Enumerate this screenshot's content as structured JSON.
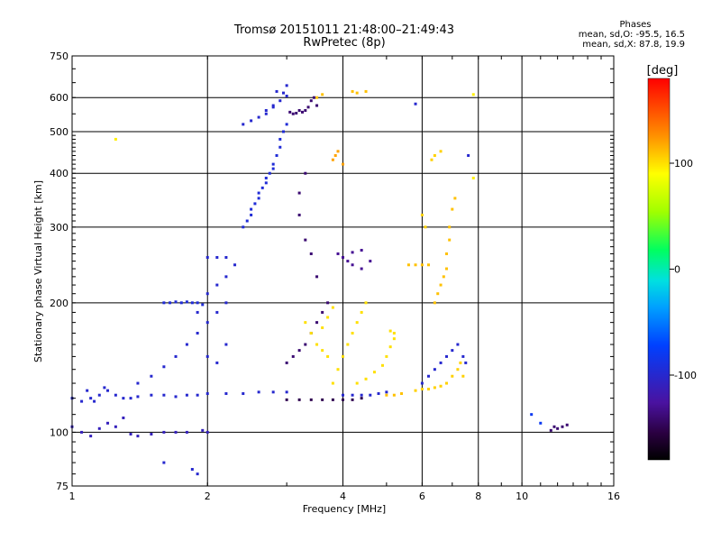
{
  "header": {
    "title": "Tromsø 20151011 21:48:00–21:49:43",
    "subtitle": "RwPretec (8p)"
  },
  "phases_box": {
    "heading": "Phases",
    "line_o": "mean, sd,O: -95.5, 16.5",
    "line_x": "mean, sd,X:  87.8, 19.9"
  },
  "chart_data": {
    "type": "scatter",
    "title": "Tromsø 20151011 21:48:00–21:49:43",
    "subtitle": "RwPretec (8p)",
    "xlabel": "Frequency [MHz]",
    "ylabel": "Stationary phase Virtual Height [km]",
    "x_scale": "log",
    "y_scale": "log",
    "xlim": [
      1,
      16
    ],
    "ylim": [
      75,
      750
    ],
    "x_ticks": [
      1,
      2,
      4,
      6,
      8,
      10,
      16
    ],
    "y_ticks": [
      75,
      100,
      200,
      300,
      400,
      500,
      600,
      750
    ],
    "x_grid": [
      1,
      2,
      4,
      6,
      8,
      10,
      16
    ],
    "y_grid": [
      100,
      200,
      300,
      400,
      500,
      600,
      750
    ],
    "grid": true,
    "colorbar": {
      "label": "[deg]",
      "range": [
        -180,
        180
      ],
      "ticks": [
        -100,
        0,
        100
      ],
      "colormap": "rainbow (black-purple-blue-cyan-green-yellow-orange-red)"
    },
    "series": [
      {
        "phase": -100,
        "points": [
          [
            1.0,
            120
          ],
          [
            1.05,
            118
          ],
          [
            1.08,
            125
          ],
          [
            1.1,
            120
          ],
          [
            1.12,
            118
          ],
          [
            1.15,
            122
          ],
          [
            1.18,
            127
          ],
          [
            1.2,
            125
          ],
          [
            1.25,
            122
          ],
          [
            1.3,
            120
          ],
          [
            1.35,
            120
          ],
          [
            1.4,
            121
          ],
          [
            1.5,
            122
          ],
          [
            1.6,
            122
          ],
          [
            1.7,
            121
          ],
          [
            1.8,
            122
          ],
          [
            1.9,
            122
          ],
          [
            2.0,
            123
          ],
          [
            2.2,
            123
          ],
          [
            2.4,
            123
          ],
          [
            2.6,
            124
          ],
          [
            2.8,
            124
          ],
          [
            3.0,
            124
          ]
        ]
      },
      {
        "phase": -110,
        "points": [
          [
            1.0,
            103
          ],
          [
            1.05,
            100
          ],
          [
            1.1,
            98
          ],
          [
            1.15,
            102
          ],
          [
            1.2,
            105
          ],
          [
            1.25,
            103
          ],
          [
            1.3,
            108
          ],
          [
            1.35,
            99
          ],
          [
            1.4,
            98
          ],
          [
            1.5,
            99
          ],
          [
            1.6,
            100
          ],
          [
            1.7,
            100
          ],
          [
            1.8,
            100
          ],
          [
            1.95,
            101
          ],
          [
            2.0,
            100
          ]
        ]
      },
      {
        "phase": -95,
        "points": [
          [
            1.6,
            200
          ],
          [
            1.65,
            200
          ],
          [
            1.7,
            201
          ],
          [
            1.75,
            200
          ],
          [
            1.8,
            201
          ],
          [
            1.85,
            200
          ],
          [
            1.9,
            200
          ],
          [
            1.95,
            198
          ]
        ]
      },
      {
        "phase": -100,
        "points": [
          [
            1.4,
            130
          ],
          [
            1.5,
            135
          ],
          [
            1.6,
            142
          ],
          [
            1.7,
            150
          ],
          [
            1.8,
            160
          ],
          [
            1.9,
            170
          ],
          [
            2.0,
            180
          ],
          [
            2.1,
            190
          ],
          [
            2.2,
            200
          ],
          [
            2.0,
            150
          ],
          [
            2.1,
            145
          ],
          [
            2.2,
            160
          ],
          [
            1.9,
            190
          ],
          [
            2.0,
            210
          ],
          [
            2.1,
            220
          ],
          [
            2.2,
            230
          ],
          [
            2.3,
            245
          ],
          [
            2.2,
            255
          ],
          [
            2.1,
            255
          ],
          [
            2.0,
            255
          ]
        ]
      },
      {
        "phase": -95,
        "points": [
          [
            2.4,
            300
          ],
          [
            2.45,
            310
          ],
          [
            2.5,
            320
          ],
          [
            2.5,
            330
          ],
          [
            2.55,
            340
          ],
          [
            2.6,
            350
          ],
          [
            2.6,
            360
          ],
          [
            2.65,
            370
          ],
          [
            2.7,
            380
          ],
          [
            2.7,
            390
          ],
          [
            2.75,
            400
          ],
          [
            2.8,
            410
          ],
          [
            2.8,
            420
          ],
          [
            2.85,
            440
          ],
          [
            2.9,
            460
          ],
          [
            2.9,
            480
          ],
          [
            2.95,
            500
          ],
          [
            3.0,
            520
          ]
        ]
      },
      {
        "phase": -100,
        "points": [
          [
            2.4,
            520
          ],
          [
            2.5,
            530
          ],
          [
            2.6,
            540
          ],
          [
            2.7,
            560
          ],
          [
            2.8,
            575
          ],
          [
            2.9,
            590
          ],
          [
            3.0,
            605
          ],
          [
            2.95,
            615
          ],
          [
            2.85,
            620
          ],
          [
            2.8,
            570
          ],
          [
            2.7,
            550
          ]
        ]
      },
      {
        "phase": -140,
        "points": [
          [
            3.05,
            555
          ],
          [
            3.1,
            550
          ],
          [
            3.15,
            552
          ],
          [
            3.2,
            560
          ],
          [
            3.25,
            555
          ],
          [
            3.3,
            560
          ],
          [
            3.35,
            570
          ],
          [
            3.4,
            590
          ],
          [
            3.45,
            600
          ],
          [
            3.5,
            575
          ]
        ]
      },
      {
        "phase": -140,
        "points": [
          [
            3.0,
            145
          ],
          [
            3.1,
            150
          ],
          [
            3.2,
            155
          ],
          [
            3.3,
            160
          ],
          [
            3.4,
            170
          ],
          [
            3.5,
            180
          ],
          [
            3.6,
            190
          ],
          [
            3.7,
            200
          ],
          [
            3.5,
            230
          ],
          [
            3.4,
            260
          ],
          [
            3.3,
            280
          ],
          [
            3.2,
            320
          ],
          [
            3.2,
            360
          ],
          [
            3.3,
            400
          ]
        ]
      },
      {
        "phase": -150,
        "points": [
          [
            3.0,
            119
          ],
          [
            3.2,
            119
          ],
          [
            3.4,
            119
          ],
          [
            3.6,
            119
          ],
          [
            3.8,
            119
          ],
          [
            4.0,
            119
          ],
          [
            4.2,
            119
          ],
          [
            4.4,
            120
          ]
        ]
      },
      {
        "phase": -130,
        "points": [
          [
            3.9,
            260
          ],
          [
            4.0,
            255
          ],
          [
            4.1,
            250
          ],
          [
            4.2,
            245
          ],
          [
            4.4,
            240
          ],
          [
            4.6,
            250
          ],
          [
            4.4,
            265
          ],
          [
            4.2,
            262
          ]
        ]
      },
      {
        "phase": -100,
        "points": [
          [
            4.0,
            122
          ],
          [
            4.2,
            122
          ],
          [
            4.4,
            122
          ],
          [
            4.6,
            122
          ],
          [
            4.8,
            123
          ],
          [
            5.0,
            124
          ]
        ]
      },
      {
        "phase": 100,
        "points": [
          [
            3.8,
            130
          ],
          [
            3.9,
            140
          ],
          [
            4.0,
            150
          ],
          [
            4.1,
            160
          ],
          [
            4.2,
            170
          ],
          [
            4.3,
            180
          ],
          [
            4.4,
            190
          ],
          [
            4.5,
            200
          ],
          [
            3.7,
            150
          ],
          [
            3.6,
            155
          ],
          [
            3.5,
            160
          ],
          [
            3.4,
            170
          ],
          [
            3.3,
            180
          ],
          [
            3.6,
            175
          ],
          [
            3.7,
            185
          ],
          [
            3.8,
            195
          ]
        ]
      },
      {
        "phase": 100,
        "points": [
          [
            4.3,
            130
          ],
          [
            4.5,
            133
          ],
          [
            4.7,
            138
          ],
          [
            4.9,
            143
          ],
          [
            5.0,
            150
          ],
          [
            5.1,
            158
          ],
          [
            5.2,
            165
          ],
          [
            5.2,
            170
          ],
          [
            5.1,
            172
          ]
        ]
      },
      {
        "phase": 110,
        "points": [
          [
            5.0,
            122
          ],
          [
            5.2,
            122
          ],
          [
            5.4,
            123
          ]
        ]
      },
      {
        "phase": 105,
        "points": [
          [
            5.8,
            125
          ],
          [
            6.0,
            126
          ],
          [
            6.2,
            126
          ],
          [
            6.4,
            127
          ],
          [
            6.6,
            128
          ],
          [
            6.8,
            130
          ],
          [
            7.0,
            135
          ],
          [
            7.2,
            140
          ],
          [
            7.3,
            145
          ],
          [
            7.4,
            135
          ]
        ]
      },
      {
        "phase": 110,
        "points": [
          [
            5.6,
            245
          ],
          [
            5.8,
            245
          ],
          [
            6.0,
            245
          ],
          [
            6.2,
            245
          ]
        ]
      },
      {
        "phase": 110,
        "points": [
          [
            6.4,
            200
          ],
          [
            6.5,
            210
          ],
          [
            6.6,
            220
          ],
          [
            6.7,
            230
          ],
          [
            6.8,
            240
          ],
          [
            6.8,
            260
          ],
          [
            6.9,
            280
          ],
          [
            6.9,
            300
          ],
          [
            7.0,
            330
          ],
          [
            7.1,
            350
          ]
        ]
      },
      {
        "phase": -100,
        "points": [
          [
            6.0,
            130
          ],
          [
            6.2,
            135
          ],
          [
            6.4,
            140
          ],
          [
            6.6,
            145
          ],
          [
            6.8,
            150
          ],
          [
            7.0,
            155
          ],
          [
            7.2,
            160
          ],
          [
            7.4,
            150
          ],
          [
            7.5,
            145
          ]
        ]
      },
      {
        "phase": 120,
        "points": [
          [
            3.8,
            430
          ],
          [
            3.9,
            450
          ],
          [
            3.85,
            440
          ],
          [
            4.0,
            420
          ]
        ]
      },
      {
        "phase": 110,
        "points": [
          [
            4.2,
            620
          ],
          [
            4.3,
            615
          ],
          [
            4.5,
            620
          ],
          [
            3.5,
            600
          ],
          [
            3.6,
            610
          ]
        ]
      },
      {
        "phase": 105,
        "points": [
          [
            6.3,
            430
          ],
          [
            6.4,
            440
          ],
          [
            6.6,
            450
          ],
          [
            6.0,
            320
          ],
          [
            6.1,
            300
          ]
        ]
      },
      {
        "phase": -140,
        "points": [
          [
            12.0,
            102
          ],
          [
            12.3,
            103
          ],
          [
            12.6,
            104
          ],
          [
            11.6,
            101
          ],
          [
            11.8,
            103
          ]
        ]
      },
      {
        "phase": -80,
        "points": [
          [
            11.0,
            105
          ],
          [
            10.5,
            110
          ]
        ]
      },
      {
        "phase": 95,
        "points": [
          [
            1.25,
            480
          ],
          [
            7.8,
            610
          ],
          [
            7.8,
            390
          ]
        ]
      },
      {
        "phase": -100,
        "points": [
          [
            1.6,
            85
          ],
          [
            1.9,
            80
          ],
          [
            1.85,
            82
          ],
          [
            5.8,
            580
          ],
          [
            3.0,
            640
          ],
          [
            7.6,
            440
          ]
        ]
      }
    ]
  }
}
